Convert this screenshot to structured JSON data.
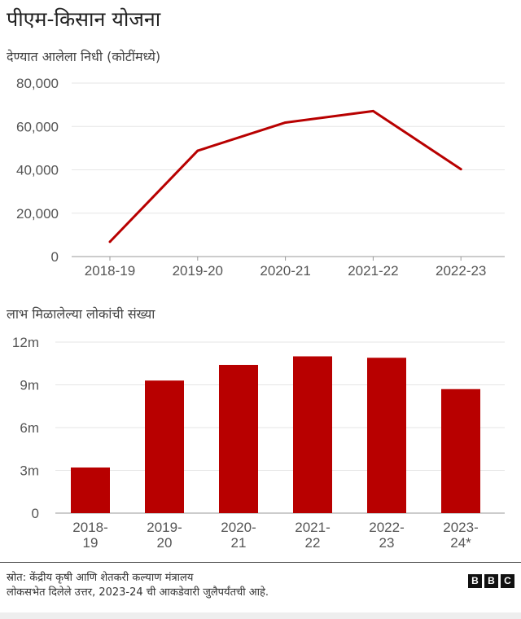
{
  "title": "पीएम-किसान योजना",
  "colors": {
    "accent": "#b80000",
    "grid": "#e6e6e6"
  },
  "chart_data": [
    {
      "type": "line",
      "title": "देण्यात आलेला निधी (कोटींमध्ये)",
      "categories": [
        "2018-19",
        "2019-20",
        "2020-21",
        "2021-22",
        "2022-23"
      ],
      "values": [
        6800,
        48800,
        61800,
        67100,
        40300
      ],
      "ylim": [
        0,
        80000
      ],
      "yticks": [
        0,
        20000,
        40000,
        60000,
        80000
      ],
      "ytick_labels": [
        "0",
        "20,000",
        "40,000",
        "60,000",
        "80,000"
      ],
      "grid": true
    },
    {
      "type": "bar",
      "title": "लाभ मिळालेल्या लोकांची संख्या",
      "categories": [
        [
          "2018-",
          "19"
        ],
        [
          "2019-",
          "20"
        ],
        [
          "2020-",
          "21"
        ],
        [
          "2021-",
          "22"
        ],
        [
          "2022-",
          "23"
        ],
        [
          "2023-",
          "24*"
        ]
      ],
      "values": [
        3.2,
        9.3,
        10.4,
        11.0,
        10.9,
        8.7
      ],
      "unit": "m",
      "ylim": [
        0,
        12
      ],
      "yticks": [
        0,
        3,
        6,
        9,
        12
      ],
      "ytick_labels": [
        "0",
        "3m",
        "6m",
        "9m",
        "12m"
      ],
      "grid": true
    }
  ],
  "footer": {
    "source": "स्रोत: केंद्रीय कृषी आणि शेतकरी कल्याण मंत्रालय",
    "note": "लोकसभेत दिलेले उत्तर, 2023-24 ची आकडेवारी जुलैपर्यंतची आहे.",
    "logo": [
      "B",
      "B",
      "C"
    ]
  }
}
